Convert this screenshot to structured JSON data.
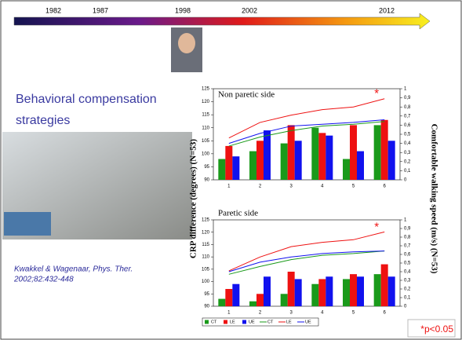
{
  "timeline": {
    "labels": [
      "1982",
      "1987",
      "1998",
      "2002",
      "2012"
    ]
  },
  "heading": [
    "Behavioral compensation",
    "strategies"
  ],
  "citation": [
    "Kwakkel & Wagenaar, Phys. Ther.",
    "2002;82:432-448"
  ],
  "footnote": "*p<0.05",
  "chart_data": [
    {
      "type": "bar",
      "title": "Non paretic side",
      "annotation": "*",
      "ylabel": "CRP difference (degrees) (N=53)",
      "y2label": "Comfortable walking speed (m/s) (N=53)",
      "categories": [
        "1",
        "2",
        "3",
        "4",
        "5",
        "6"
      ],
      "ylim": [
        90,
        125
      ],
      "yticks": [
        90,
        95,
        100,
        105,
        110,
        115,
        120,
        125
      ],
      "y2lim": [
        0,
        1
      ],
      "y2ticks": [
        0,
        {
          "value": 0.1,
          "label": "0,1"
        },
        {
          "value": 0.2,
          "label": "0,2"
        },
        {
          "value": 0.3,
          "label": "0,3"
        },
        {
          "value": 0.4,
          "label": "0,4"
        },
        {
          "value": 0.5,
          "label": "0,5"
        },
        {
          "value": 0.6,
          "label": "0,6"
        },
        {
          "value": 0.7,
          "label": "0,7"
        },
        {
          "value": 0.8,
          "label": "0,8"
        },
        {
          "value": 0.9,
          "label": "0,9"
        },
        1
      ],
      "legend": false,
      "series": [
        {
          "name": "CT",
          "type": "bar",
          "color": "#1a9a1a",
          "values": [
            98,
            101,
            104,
            110,
            98,
            111
          ]
        },
        {
          "name": "LE",
          "type": "bar",
          "color": "#ee1111",
          "values": [
            103,
            105,
            111,
            108,
            111,
            113
          ]
        },
        {
          "name": "UE",
          "type": "bar",
          "color": "#1111ee",
          "values": [
            99,
            109,
            105,
            107,
            101,
            105
          ]
        },
        {
          "name": "CT",
          "type": "line",
          "axis": "y2",
          "color": "#1a9a1a",
          "values": [
            0.37,
            0.47,
            0.54,
            0.59,
            0.61,
            0.64
          ]
        },
        {
          "name": "LE",
          "type": "line",
          "axis": "y2",
          "color": "#ee1111",
          "values": [
            0.46,
            0.63,
            0.71,
            0.77,
            0.8,
            0.89
          ]
        },
        {
          "name": "UE",
          "type": "line",
          "axis": "y2",
          "color": "#1111ee",
          "values": [
            0.4,
            0.51,
            0.59,
            0.61,
            0.63,
            0.66
          ]
        }
      ]
    },
    {
      "type": "bar",
      "title": "Paretic side",
      "annotation": "*",
      "categories": [
        "1",
        "2",
        "3",
        "4",
        "5",
        "6"
      ],
      "ylim": [
        90,
        125
      ],
      "yticks": [
        90,
        95,
        100,
        105,
        110,
        115,
        120,
        125
      ],
      "y2lim": [
        0,
        1
      ],
      "y2ticks": [
        0,
        {
          "value": 0.1,
          "label": "0,1"
        },
        {
          "value": 0.2,
          "label": "0,2"
        },
        {
          "value": 0.3,
          "label": "0,3"
        },
        {
          "value": 0.4,
          "label": "0,4"
        },
        {
          "value": 0.5,
          "label": "0,5"
        },
        {
          "value": 0.6,
          "label": "0,6"
        },
        {
          "value": 0.7,
          "label": "0,7"
        },
        {
          "value": 0.8,
          "label": "0,8"
        },
        {
          "value": 0.9,
          "label": "0,9"
        },
        1
      ],
      "legend": "bottom",
      "series": [
        {
          "name": "CT",
          "type": "bar",
          "color": "#1a9a1a",
          "values": [
            93,
            92,
            95,
            99,
            101,
            103
          ]
        },
        {
          "name": "LE",
          "type": "bar",
          "color": "#ee1111",
          "values": [
            97,
            95,
            104,
            101,
            103,
            107
          ]
        },
        {
          "name": "UE",
          "type": "bar",
          "color": "#1111ee",
          "values": [
            99,
            102,
            101,
            102,
            102,
            102
          ]
        },
        {
          "name": "CT",
          "type": "line",
          "axis": "y2",
          "color": "#1a9a1a",
          "values": [
            0.37,
            0.46,
            0.54,
            0.59,
            0.61,
            0.64
          ]
        },
        {
          "name": "LE",
          "type": "line",
          "axis": "y2",
          "color": "#ee1111",
          "values": [
            0.41,
            0.57,
            0.69,
            0.74,
            0.77,
            0.86
          ]
        },
        {
          "name": "UE",
          "type": "line",
          "axis": "y2",
          "color": "#1111ee",
          "values": [
            0.4,
            0.51,
            0.57,
            0.61,
            0.63,
            0.64
          ]
        }
      ]
    }
  ]
}
